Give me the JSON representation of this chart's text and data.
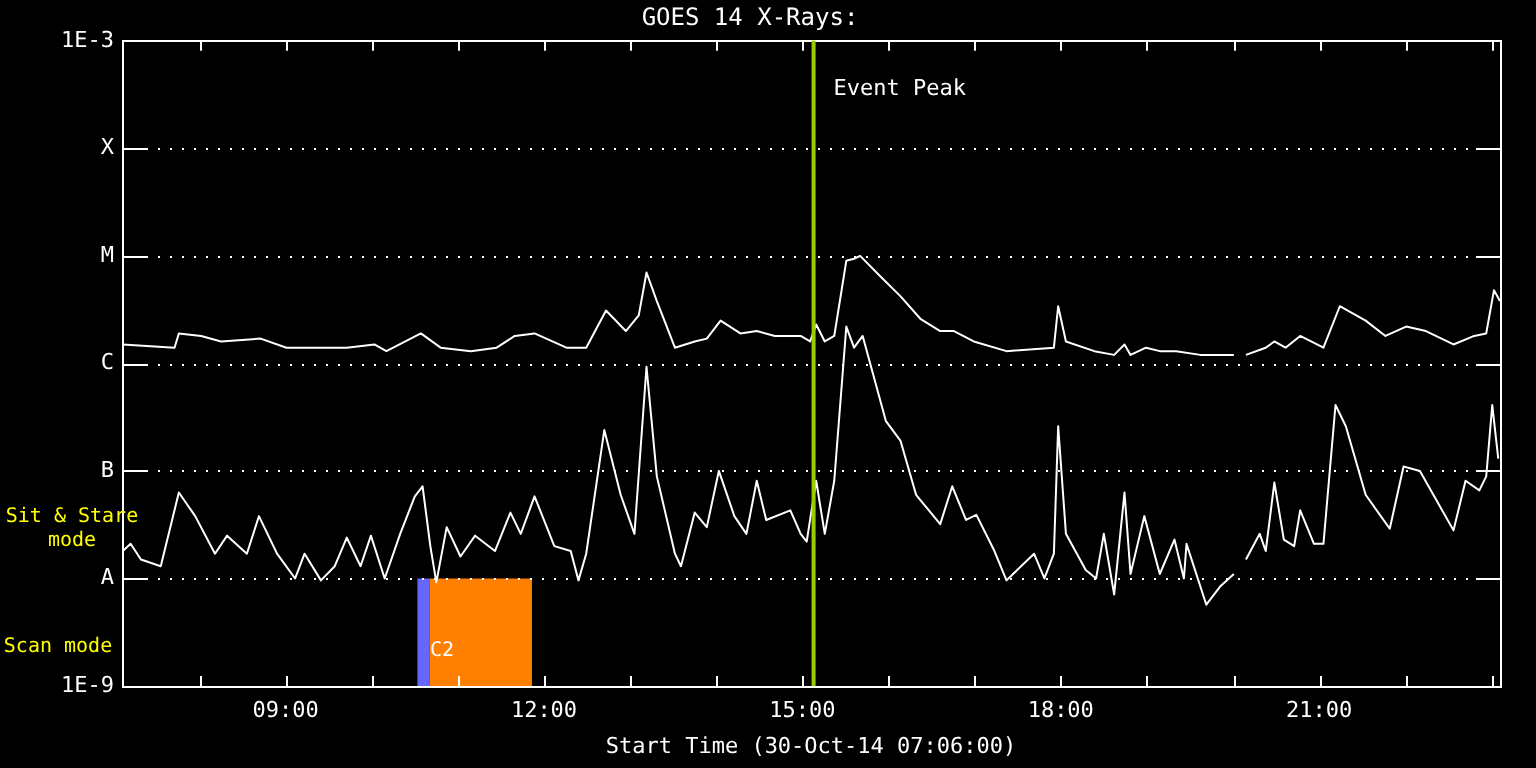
{
  "chart_data": {
    "type": "line",
    "title": "GOES 14 X-Rays:",
    "xlabel": "Start Time (30-Oct-14 07:06:00)",
    "xlim": [
      7.1,
      23.1
    ],
    "xticks": [
      {
        "value": 8,
        "label": null
      },
      {
        "value": 9,
        "label": "09:00"
      },
      {
        "value": 10,
        "label": null
      },
      {
        "value": 11,
        "label": null
      },
      {
        "value": 12,
        "label": "12:00"
      },
      {
        "value": 13,
        "label": null
      },
      {
        "value": 14,
        "label": null
      },
      {
        "value": 15,
        "label": "15:00"
      },
      {
        "value": 16,
        "label": null
      },
      {
        "value": 17,
        "label": null
      },
      {
        "value": 18,
        "label": "18:00"
      },
      {
        "value": 19,
        "label": null
      },
      {
        "value": 20,
        "label": null
      },
      {
        "value": 21,
        "label": "21:00"
      },
      {
        "value": 22,
        "label": null
      },
      {
        "value": 23,
        "label": null
      }
    ],
    "ylim": [
      1e-09,
      0.001
    ],
    "yticks": [
      {
        "value": 1e-09,
        "label": "1E-9"
      },
      {
        "value": 1e-08,
        "label": "A"
      },
      {
        "value": 1e-07,
        "label": "B"
      },
      {
        "value": 1e-06,
        "label": "C"
      },
      {
        "value": 1e-05,
        "label": "M"
      },
      {
        "value": 0.0001,
        "label": "X"
      },
      {
        "value": 0.001,
        "label": "1E-3"
      }
    ],
    "log": "y",
    "grid": "y",
    "legend": false,
    "marker": "none",
    "line_style": "solid",
    "series": [
      {
        "color": "#ffffff",
        "x": [
          7.11,
          7.71,
          7.76,
          8.02,
          8.25,
          8.71,
          9.01,
          9.34,
          9.71,
          10.03,
          10.17,
          10.57,
          10.8,
          11.15,
          11.45,
          11.66,
          11.89,
          12.26,
          12.49,
          12.72,
          12.95,
          13.1,
          13.19,
          13.31,
          13.52,
          13.75,
          13.89,
          14.05,
          14.28,
          14.47,
          14.68,
          14.98,
          15.09,
          15.16,
          15.26,
          15.37,
          15.51,
          15.6,
          15.67,
          15.91,
          16.14,
          16.37,
          16.6,
          16.76,
          16.99,
          17.37,
          17.92,
          17.97,
          18.06,
          18.39,
          18.62,
          18.74,
          18.81,
          18.99,
          19.15,
          19.34,
          19.62,
          20.01,
          20.08,
          20.15,
          20.38,
          20.48,
          20.61,
          20.78,
          21.05,
          21.24,
          21.54,
          21.77,
          22.01,
          22.24,
          22.56,
          22.8,
          22.94,
          23.03,
          23.1
        ],
        "values": [
          1.5e-06,
          1.4e-06,
          1.9e-06,
          1.8e-06,
          1.6e-06,
          1.7e-06,
          1.4e-06,
          1.4e-06,
          1.4e-06,
          1.5e-06,
          1.3e-06,
          1.9e-06,
          1.4e-06,
          1.3e-06,
          1.4e-06,
          1.8e-06,
          1.9e-06,
          1.4e-06,
          1.4e-06,
          3.1e-06,
          2e-06,
          2.8e-06,
          7e-06,
          3.8e-06,
          1.4e-06,
          1.6e-06,
          1.7e-06,
          2.5e-06,
          1.9e-06,
          2e-06,
          1.8e-06,
          1.8e-06,
          1.6e-06,
          2.3e-06,
          1.6e-06,
          1.8e-06,
          9e-06,
          9.4e-06,
          1e-05,
          6.4e-06,
          4.2e-06,
          2.6e-06,
          2e-06,
          2e-06,
          1.6e-06,
          1.3e-06,
          1.4e-06,
          3.4e-06,
          1.6e-06,
          1.3e-06,
          1.2e-06,
          1.5e-06,
          1.2e-06,
          1.4e-06,
          1.3e-06,
          1.3e-06,
          1.2e-06,
          1.2e-06,
          null,
          1.2e-06,
          1.4e-06,
          1.6e-06,
          1.4e-06,
          1.8e-06,
          1.4e-06,
          3.4e-06,
          2.5e-06,
          1.8e-06,
          2.2e-06,
          2e-06,
          1.5e-06,
          1.8e-06,
          1.9e-06,
          4.8e-06,
          3.8e-06
        ]
      },
      {
        "color": "#ffffff",
        "x": [
          7.11,
          7.2,
          7.32,
          7.55,
          7.76,
          7.95,
          8.18,
          8.32,
          8.55,
          8.69,
          8.9,
          9.11,
          9.22,
          9.41,
          9.57,
          9.71,
          9.87,
          9.99,
          10.15,
          10.33,
          10.5,
          10.59,
          10.68,
          10.75,
          10.87,
          11.03,
          11.2,
          11.43,
          11.61,
          11.73,
          11.89,
          12.12,
          12.31,
          12.4,
          12.49,
          12.7,
          12.89,
          13.05,
          13.19,
          13.31,
          13.52,
          13.59,
          13.75,
          13.89,
          14.03,
          14.21,
          14.35,
          14.47,
          14.58,
          14.86,
          14.98,
          15.05,
          15.16,
          15.26,
          15.37,
          15.51,
          15.6,
          15.7,
          15.97,
          16.14,
          16.32,
          16.6,
          16.74,
          16.9,
          17.02,
          17.23,
          17.37,
          17.69,
          17.81,
          17.92,
          17.97,
          18.06,
          18.29,
          18.41,
          18.5,
          18.62,
          18.74,
          18.81,
          18.97,
          19.15,
          19.32,
          19.43,
          19.46,
          19.69,
          19.85,
          20.01,
          20.08,
          20.15,
          20.31,
          20.38,
          20.48,
          20.59,
          20.71,
          20.78,
          20.94,
          21.05,
          21.19,
          21.31,
          21.54,
          21.82,
          21.98,
          22.17,
          22.56,
          22.7,
          22.86,
          22.94,
          23.01,
          23.08
        ],
        "values": [
          1.8e-08,
          2.1e-08,
          1.5e-08,
          1.3e-08,
          6.3e-08,
          3.8e-08,
          1.7e-08,
          2.5e-08,
          1.7e-08,
          3.8e-08,
          1.7e-08,
          1e-08,
          1.7e-08,
          9.6e-09,
          1.3e-08,
          2.4e-08,
          1.3e-08,
          2.5e-08,
          1e-08,
          2.6e-08,
          5.8e-08,
          7.2e-08,
          2e-08,
          9.2e-09,
          3e-08,
          1.6e-08,
          2.5e-08,
          1.8e-08,
          4.1e-08,
          2.6e-08,
          5.8e-08,
          2e-08,
          1.8e-08,
          9.6e-09,
          1.7e-08,
          2.4e-07,
          6e-08,
          2.6e-08,
          9.3e-07,
          8.9e-08,
          1.7e-08,
          1.3e-08,
          4.1e-08,
          3e-08,
          1e-07,
          3.8e-08,
          2.6e-08,
          8.1e-08,
          3.5e-08,
          4.3e-08,
          2.6e-08,
          2.2e-08,
          8.1e-08,
          2.6e-08,
          8.1e-08,
          2.2e-06,
          1.4e-06,
          1.8e-06,
          2.9e-07,
          1.9e-07,
          6e-08,
          3.2e-08,
          7.2e-08,
          3.5e-08,
          3.9e-08,
          1.8e-08,
          9.6e-09,
          1.7e-08,
          1e-08,
          1.7e-08,
          2.6e-07,
          2.6e-08,
          1.2e-08,
          1e-08,
          2.6e-08,
          7.1e-09,
          6.3e-08,
          1.1e-08,
          3.8e-08,
          1.1e-08,
          2.3e-08,
          1e-08,
          2.1e-08,
          5.7e-09,
          8.4e-09,
          1.1e-08,
          null,
          1.5e-08,
          2.6e-08,
          1.8e-08,
          7.8e-08,
          2.3e-08,
          2e-08,
          4.3e-08,
          2.1e-08,
          2.1e-08,
          4.1e-07,
          2.6e-07,
          6e-08,
          2.9e-08,
          1.1e-07,
          1e-07,
          2.8e-08,
          8.1e-08,
          6.6e-08,
          8.9e-08,
          4.1e-07,
          1.3e-07
        ]
      }
    ],
    "ref_lines": [
      {
        "axis": "x",
        "value": 15.13,
        "label": "Event Peak",
        "color": "#99cc00"
      }
    ],
    "bands": [
      {
        "axis": "x",
        "from": 10.53,
        "to": 10.67,
        "color": "#6666ff"
      },
      {
        "axis": "x",
        "from": 10.67,
        "to": 11.86,
        "color": "#ff8000"
      }
    ],
    "annotations": [
      "Sit & Stare mode",
      "Scan mode",
      "C2"
    ]
  }
}
